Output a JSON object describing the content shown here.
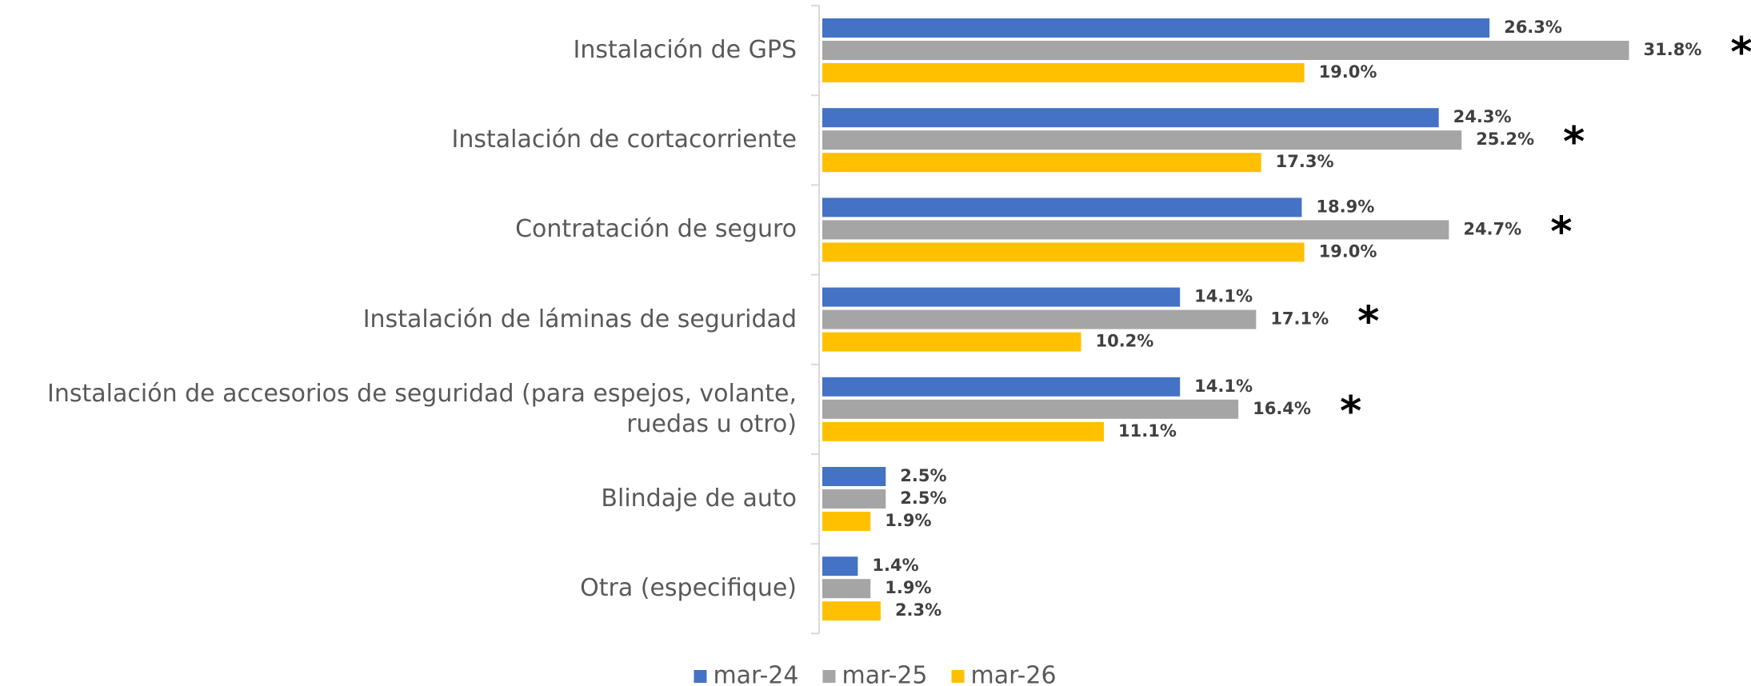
{
  "chart_data": {
    "type": "bar",
    "orientation": "horizontal",
    "categories": [
      "Instalación de GPS",
      "Instalación de cortacorriente",
      "Contratación de seguro",
      "Instalación de láminas de seguridad",
      "Instalación de accesorios de seguridad (para espejos, volante, ruedas u otro)",
      "Blindaje de auto",
      "Otra (especifique)"
    ],
    "series": [
      {
        "name": "mar-24",
        "color": "#4472C4",
        "values": [
          26.3,
          24.3,
          18.9,
          14.1,
          14.1,
          2.5,
          1.4
        ],
        "value_labels": [
          "26.3%",
          "24.3%",
          "18.9%",
          "14.1%",
          "14.1%",
          "2.5%",
          "1.4%"
        ]
      },
      {
        "name": "mar-25",
        "color": "#A5A5A5",
        "values": [
          31.8,
          25.2,
          24.7,
          17.1,
          16.4,
          2.5,
          1.9
        ],
        "value_labels": [
          "31.8%",
          "25.2%",
          "24.7%",
          "17.1%",
          "16.4%",
          "2.5%",
          "1.9%"
        ]
      },
      {
        "name": "mar-26",
        "color": "#FFC000",
        "values": [
          19.0,
          17.3,
          19.0,
          10.2,
          11.1,
          1.9,
          2.3
        ],
        "value_labels": [
          "19.0%",
          "17.3%",
          "19.0%",
          "10.2%",
          "11.1%",
          "1.9%",
          "2.3%"
        ]
      }
    ],
    "annotations": [
      "*",
      "*",
      "*",
      "*",
      "*"
    ],
    "xlim": [
      0,
      35
    ],
    "legend": "bottom"
  }
}
